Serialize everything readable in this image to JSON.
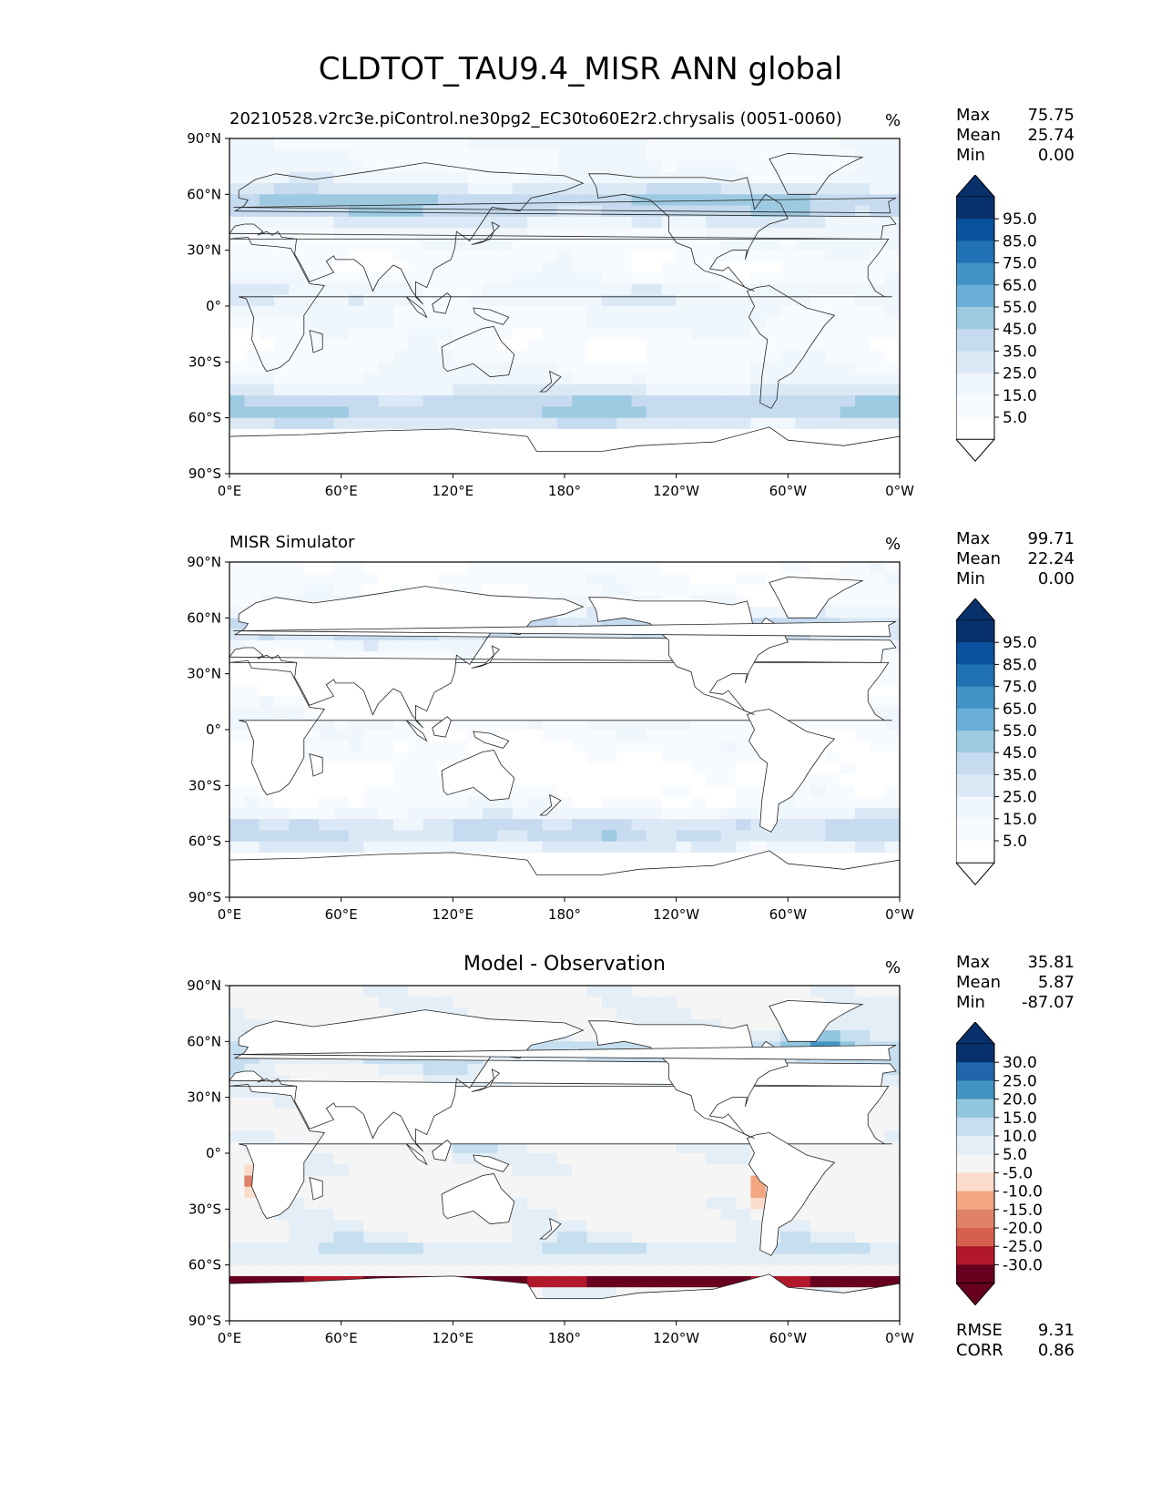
{
  "figure": {
    "title": "CLDTOT_TAU9.4_MISR ANN global"
  },
  "chart_data": [
    {
      "type": "heatmap",
      "title": "20210528.v2rc3e.piControl.ne30pg2_EC30to60E2r2.chrysalis (0051-0060)",
      "units": "%",
      "x_ticks": [
        "0°E",
        "60°E",
        "120°E",
        "180°",
        "120°W",
        "60°W",
        "0°W"
      ],
      "y_ticks": [
        "90°N",
        "60°N",
        "30°N",
        "0°",
        "30°S",
        "60°S",
        "90°S"
      ],
      "stats": {
        "max_label": "Max",
        "max": "75.75",
        "mean_label": "Mean",
        "mean": "25.74",
        "min_label": "Min",
        "min": "0.00"
      },
      "colorbar": {
        "levels": [
          "95.0",
          "85.0",
          "75.0",
          "65.0",
          "55.0",
          "45.0",
          "35.0",
          "25.0",
          "15.0",
          "5.0"
        ],
        "colors": [
          "#08306b",
          "#08519c",
          "#2171b5",
          "#4292c6",
          "#6baed6",
          "#9ecae1",
          "#c6dbef",
          "#dbe9f6",
          "#eff6fc",
          "#f7fbff",
          "#ffffff",
          "#ffffff"
        ]
      }
    },
    {
      "type": "heatmap",
      "title": "MISR Simulator",
      "units": "%",
      "x_ticks": [
        "0°E",
        "60°E",
        "120°E",
        "180°",
        "120°W",
        "60°W",
        "0°W"
      ],
      "y_ticks": [
        "90°N",
        "60°N",
        "30°N",
        "0°",
        "30°S",
        "60°S",
        "90°S"
      ],
      "stats": {
        "max_label": "Max",
        "max": "99.71",
        "mean_label": "Mean",
        "mean": "22.24",
        "min_label": "Min",
        "min": "0.00"
      },
      "colorbar": {
        "levels": [
          "95.0",
          "85.0",
          "75.0",
          "65.0",
          "55.0",
          "45.0",
          "35.0",
          "25.0",
          "15.0",
          "5.0"
        ],
        "colors": [
          "#08306b",
          "#08519c",
          "#2171b5",
          "#4292c6",
          "#6baed6",
          "#9ecae1",
          "#c6dbef",
          "#dbe9f6",
          "#eff6fc",
          "#f7fbff",
          "#ffffff",
          "#ffffff"
        ]
      }
    },
    {
      "type": "heatmap",
      "title": "Model - Observation",
      "units": "%",
      "x_ticks": [
        "0°E",
        "60°E",
        "120°E",
        "180°",
        "120°W",
        "60°W",
        "0°W"
      ],
      "y_ticks": [
        "90°N",
        "60°N",
        "30°N",
        "0°",
        "30°S",
        "60°S",
        "90°S"
      ],
      "stats": {
        "max_label": "Max",
        "max": "35.81",
        "mean_label": "Mean",
        "mean": "5.87",
        "min_label": "Min",
        "min": "-87.07"
      },
      "metrics": {
        "rmse_label": "RMSE",
        "rmse": "9.31",
        "corr_label": "CORR",
        "corr": "0.86"
      },
      "colorbar": {
        "levels": [
          "30.0",
          "25.0",
          "20.0",
          "15.0",
          "10.0",
          "5.0",
          "-5.0",
          "-10.0",
          "-15.0",
          "-20.0",
          "-25.0",
          "-30.0"
        ],
        "colors": [
          "#08306b",
          "#2166ac",
          "#4393c3",
          "#92c5de",
          "#c5def0",
          "#e3eef7",
          "#f5f5f5",
          "#fbdccb",
          "#f4a582",
          "#e0826a",
          "#d6604d",
          "#b2182b",
          "#67001f",
          "#67001f"
        ]
      }
    }
  ]
}
